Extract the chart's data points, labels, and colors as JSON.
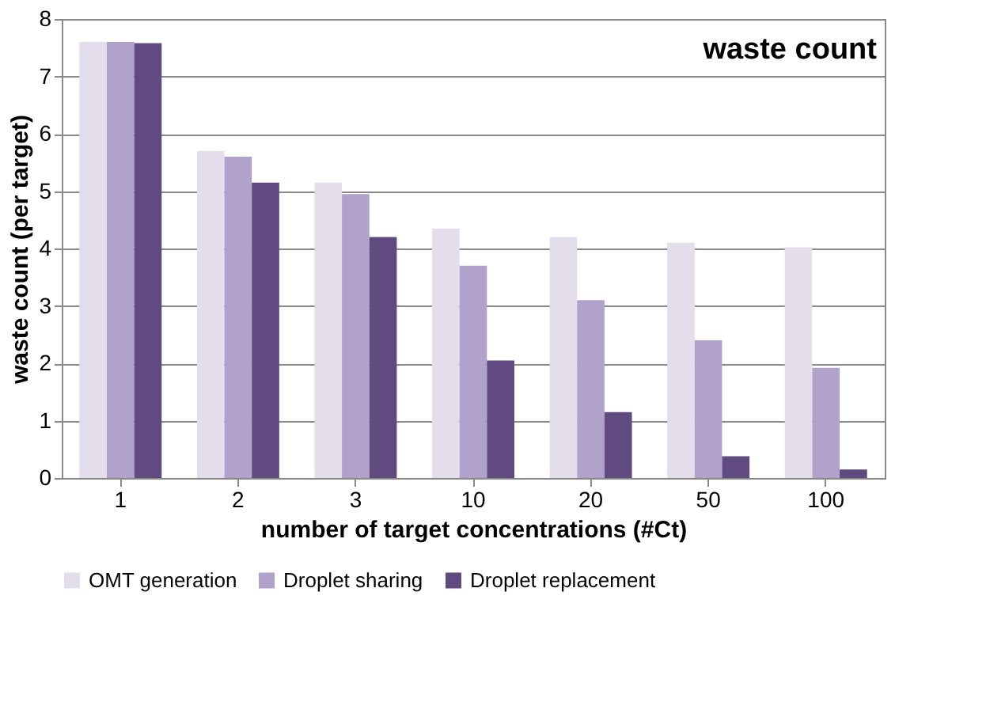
{
  "chart_data": {
    "type": "bar",
    "title": "waste count",
    "xlabel": "number of target concentrations (#Ct)",
    "ylabel": "waste count (per target)",
    "categories": [
      "1",
      "2",
      "3",
      "10",
      "20",
      "50",
      "100"
    ],
    "series": [
      {
        "name": "OMT generation",
        "color": "#e4deec",
        "values": [
          7.6,
          5.7,
          5.15,
          4.35,
          4.2,
          4.1,
          4.02
        ]
      },
      {
        "name": "Droplet sharing",
        "color": "#b1a2cc",
        "values": [
          7.6,
          5.6,
          4.95,
          3.7,
          3.1,
          2.4,
          1.92
        ]
      },
      {
        "name": "Droplet replacement",
        "color": "#604a80",
        "values": [
          7.58,
          5.15,
          4.2,
          2.05,
          1.15,
          0.38,
          0.15
        ]
      }
    ],
    "ylim": [
      0,
      8
    ],
    "yticks": [
      0,
      1,
      2,
      3,
      4,
      5,
      6,
      7,
      8
    ],
    "grid": "y",
    "legend": "bottom"
  }
}
